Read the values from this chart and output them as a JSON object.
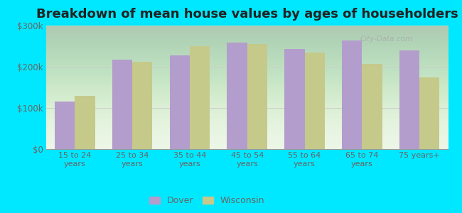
{
  "title": "Breakdown of mean house values by ages of householders",
  "categories": [
    "15 to 24\nyears",
    "25 to 34\nyears",
    "35 to 44\nyears",
    "45 to 54\nyears",
    "55 to 64\nyears",
    "65 to 74\nyears",
    "75 years+"
  ],
  "dover_values": [
    115000,
    218000,
    228000,
    258000,
    243000,
    263000,
    240000
  ],
  "wisconsin_values": [
    130000,
    212000,
    250000,
    255000,
    235000,
    207000,
    175000
  ],
  "dover_color": "#b39dcc",
  "wisconsin_color": "#c5c98a",
  "background_outer": "#00e8ff",
  "background_inner_top": "#e8f5e0",
  "background_inner_bottom": "#f0faf0",
  "ylim": [
    0,
    300000
  ],
  "yticks": [
    0,
    100000,
    200000,
    300000
  ],
  "ytick_labels": [
    "$0",
    "$100k",
    "$200k",
    "$300k"
  ],
  "legend_labels": [
    "Dover",
    "Wisconsin"
  ],
  "title_fontsize": 13,
  "bar_width": 0.35,
  "grid_color": "#cccccc",
  "watermark": "City-Data.com",
  "tick_color": "#666666"
}
